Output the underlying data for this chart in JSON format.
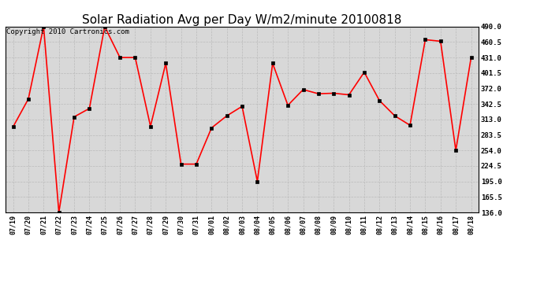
{
  "title": "Solar Radiation Avg per Day W/m2/minute 20100818",
  "copyright": "Copyright 2010 Cartronics.com",
  "dates": [
    "07/19",
    "07/20",
    "07/21",
    "07/22",
    "07/23",
    "07/24",
    "07/25",
    "07/26",
    "07/27",
    "07/28",
    "07/29",
    "07/30",
    "07/31",
    "08/01",
    "08/02",
    "08/03",
    "08/04",
    "08/05",
    "08/06",
    "08/07",
    "08/08",
    "08/09",
    "08/10",
    "08/11",
    "08/12",
    "08/13",
    "08/14",
    "08/15",
    "08/16",
    "08/17",
    "08/18"
  ],
  "values": [
    299,
    352,
    490,
    136,
    318,
    334,
    490,
    431,
    431,
    300,
    420,
    228,
    228,
    297,
    320,
    338,
    195,
    420,
    340,
    370,
    362,
    363,
    360,
    403,
    349,
    320,
    302,
    465,
    462,
    254,
    431
  ],
  "line_color": "#ff0000",
  "marker_color": "#000000",
  "bg_color": "#ffffff",
  "plot_bg_color": "#d8d8d8",
  "grid_color": "#bbbbbb",
  "ylim_min": 136.0,
  "ylim_max": 490.0,
  "yticks": [
    136.0,
    165.5,
    195.0,
    224.5,
    254.0,
    283.5,
    313.0,
    342.5,
    372.0,
    401.5,
    431.0,
    460.5,
    490.0
  ],
  "title_fontsize": 11,
  "copyright_fontsize": 6.5,
  "tick_fontsize": 6,
  "figwidth": 6.9,
  "figheight": 3.75,
  "dpi": 100
}
